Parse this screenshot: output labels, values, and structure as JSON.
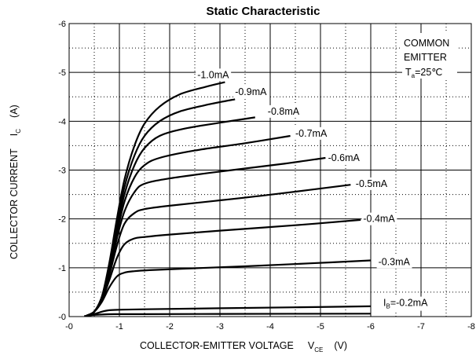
{
  "chart_data": {
    "type": "line",
    "title": "Static Characteristic",
    "xlabel": "COLLECTOR-EMITTER VOLTAGE",
    "xlabel_symbol": "V",
    "xlabel_subscript": "CE",
    "xlabel_unit": "(V)",
    "ylabel": "COLLECTOR CURRENT",
    "ylabel_symbol": "I",
    "ylabel_subscript": "C",
    "ylabel_unit": "(A)",
    "xlim": [
      0,
      -8
    ],
    "ylim": [
      0,
      -6
    ],
    "xticks": [
      "-0",
      "-1",
      "-2",
      "-3",
      "-4",
      "-5",
      "-6",
      "-7",
      "-8"
    ],
    "yticks": [
      "-0",
      "-1",
      "-2",
      "-3",
      "-4",
      "-5",
      "-6"
    ],
    "grid": true,
    "annotation": {
      "line1": "COMMON",
      "line2": "EMITTER",
      "line3_symbol": "T",
      "line3_subscript": "a",
      "line3_value": "=25℃"
    },
    "series": [
      {
        "name": "-1.0mA",
        "label_x": -2.55,
        "label_y": -4.95,
        "points": [
          [
            -0.35,
            -0.02
          ],
          [
            -0.5,
            -0.1
          ],
          [
            -0.65,
            -0.4
          ],
          [
            -0.8,
            -1.1
          ],
          [
            -0.95,
            -2.0
          ],
          [
            -1.1,
            -2.8
          ],
          [
            -1.3,
            -3.5
          ],
          [
            -1.5,
            -3.95
          ],
          [
            -1.8,
            -4.3
          ],
          [
            -2.2,
            -4.55
          ],
          [
            -2.7,
            -4.7
          ],
          [
            -3.1,
            -4.8
          ]
        ]
      },
      {
        "name": "-0.9mA",
        "label_x": -3.3,
        "label_y": -4.6,
        "points": [
          [
            -0.35,
            -0.02
          ],
          [
            -0.5,
            -0.1
          ],
          [
            -0.65,
            -0.4
          ],
          [
            -0.8,
            -1.05
          ],
          [
            -0.95,
            -1.9
          ],
          [
            -1.1,
            -2.65
          ],
          [
            -1.3,
            -3.3
          ],
          [
            -1.5,
            -3.7
          ],
          [
            -1.8,
            -4.0
          ],
          [
            -2.2,
            -4.2
          ],
          [
            -2.8,
            -4.35
          ],
          [
            -3.3,
            -4.45
          ]
        ]
      },
      {
        "name": "-0.8mA",
        "label_x": -3.95,
        "label_y": -4.2,
        "points": [
          [
            -0.35,
            -0.02
          ],
          [
            -0.5,
            -0.1
          ],
          [
            -0.65,
            -0.4
          ],
          [
            -0.8,
            -1.0
          ],
          [
            -0.95,
            -1.8
          ],
          [
            -1.1,
            -2.5
          ],
          [
            -1.3,
            -3.1
          ],
          [
            -1.5,
            -3.45
          ],
          [
            -1.8,
            -3.7
          ],
          [
            -2.3,
            -3.85
          ],
          [
            -3.0,
            -3.97
          ],
          [
            -3.7,
            -4.08
          ]
        ]
      },
      {
        "name": "-0.7mA",
        "label_x": -4.5,
        "label_y": -3.75,
        "points": [
          [
            -0.35,
            -0.02
          ],
          [
            -0.5,
            -0.1
          ],
          [
            -0.65,
            -0.4
          ],
          [
            -0.8,
            -0.95
          ],
          [
            -0.95,
            -1.7
          ],
          [
            -1.1,
            -2.35
          ],
          [
            -1.3,
            -2.85
          ],
          [
            -1.5,
            -3.1
          ],
          [
            -1.8,
            -3.25
          ],
          [
            -2.5,
            -3.4
          ],
          [
            -3.5,
            -3.55
          ],
          [
            -4.4,
            -3.7
          ]
        ]
      },
      {
        "name": "-0.6mA",
        "label_x": -5.15,
        "label_y": -3.25,
        "points": [
          [
            -0.35,
            -0.02
          ],
          [
            -0.5,
            -0.1
          ],
          [
            -0.65,
            -0.38
          ],
          [
            -0.8,
            -0.9
          ],
          [
            -0.95,
            -1.6
          ],
          [
            -1.1,
            -2.15
          ],
          [
            -1.3,
            -2.55
          ],
          [
            -1.5,
            -2.72
          ],
          [
            -2.0,
            -2.83
          ],
          [
            -3.0,
            -2.97
          ],
          [
            -4.2,
            -3.12
          ],
          [
            -5.1,
            -3.25
          ]
        ]
      },
      {
        "name": "-0.5mA",
        "label_x": -5.7,
        "label_y": -2.72,
        "points": [
          [
            -0.35,
            -0.02
          ],
          [
            -0.5,
            -0.1
          ],
          [
            -0.65,
            -0.36
          ],
          [
            -0.8,
            -0.85
          ],
          [
            -0.95,
            -1.45
          ],
          [
            -1.1,
            -1.9
          ],
          [
            -1.3,
            -2.12
          ],
          [
            -1.5,
            -2.2
          ],
          [
            -2.0,
            -2.27
          ],
          [
            -3.0,
            -2.38
          ],
          [
            -4.2,
            -2.52
          ],
          [
            -5.6,
            -2.7
          ]
        ]
      },
      {
        "name": "-0.4mA",
        "label_x": -5.85,
        "label_y": -2.0,
        "points": [
          [
            -0.35,
            -0.02
          ],
          [
            -0.5,
            -0.1
          ],
          [
            -0.65,
            -0.33
          ],
          [
            -0.8,
            -0.75
          ],
          [
            -0.95,
            -1.2
          ],
          [
            -1.1,
            -1.48
          ],
          [
            -1.3,
            -1.6
          ],
          [
            -1.5,
            -1.63
          ],
          [
            -2.0,
            -1.68
          ],
          [
            -3.0,
            -1.76
          ],
          [
            -4.5,
            -1.87
          ],
          [
            -5.8,
            -1.98
          ]
        ]
      },
      {
        "name": "-0.3mA",
        "label_x": -6.15,
        "label_y": -1.12,
        "points": [
          [
            -0.35,
            -0.02
          ],
          [
            -0.5,
            -0.1
          ],
          [
            -0.65,
            -0.3
          ],
          [
            -0.8,
            -0.6
          ],
          [
            -0.95,
            -0.82
          ],
          [
            -1.1,
            -0.9
          ],
          [
            -1.3,
            -0.93
          ],
          [
            -1.6,
            -0.95
          ],
          [
            -2.5,
            -0.99
          ],
          [
            -3.5,
            -1.03
          ],
          [
            -4.8,
            -1.09
          ],
          [
            -6.0,
            -1.15
          ]
        ]
      },
      {
        "name_symbol": "I",
        "name_subscript": "B",
        "name": "=-0.2mA",
        "label_x": -6.25,
        "label_y": -0.28,
        "points": [
          [
            -0.35,
            -0.01
          ],
          [
            -0.5,
            -0.05
          ],
          [
            -0.65,
            -0.1
          ],
          [
            -0.8,
            -0.13
          ],
          [
            -1.0,
            -0.14
          ],
          [
            -1.5,
            -0.15
          ],
          [
            -3.0,
            -0.17
          ],
          [
            -4.5,
            -0.19
          ],
          [
            -6.0,
            -0.21
          ]
        ]
      },
      {
        "name": "",
        "label_x": null,
        "label_y": null,
        "points": [
          [
            -0.3,
            -0.01
          ],
          [
            -0.45,
            -0.03
          ],
          [
            -0.6,
            -0.04
          ],
          [
            -0.9,
            -0.05
          ],
          [
            -1.5,
            -0.05
          ],
          [
            -3.0,
            -0.055
          ],
          [
            -6.0,
            -0.06
          ]
        ]
      }
    ]
  }
}
